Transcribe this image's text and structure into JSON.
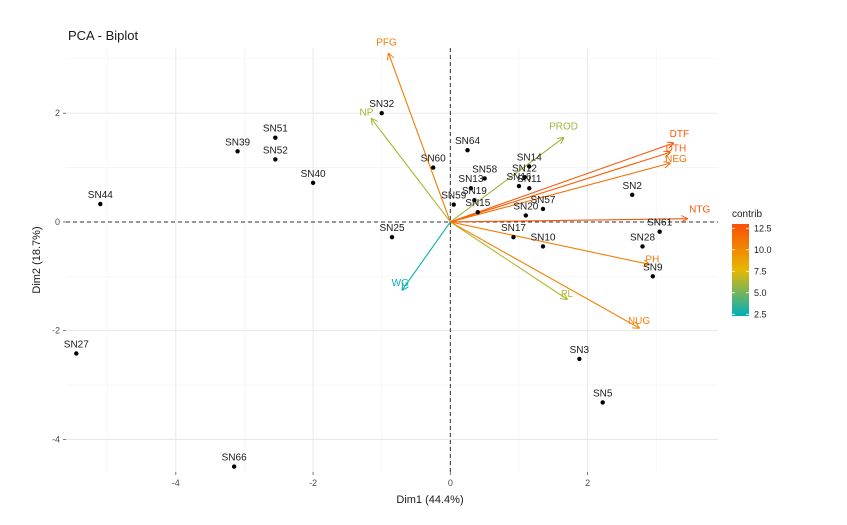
{
  "chart_data": {
    "type": "scatter",
    "subtype": "pca-biplot",
    "title": "PCA - Biplot",
    "xlabel": "Dim1 (44.4%)",
    "ylabel": "Dim2 (18.7%)",
    "xlim": [
      -5.6,
      3.9
    ],
    "ylim": [
      -4.6,
      3.2
    ],
    "x_ticks": [
      -4,
      -2,
      0,
      2
    ],
    "y_ticks": [
      -4,
      -2,
      0,
      2
    ],
    "grid": true,
    "individuals": [
      {
        "name": "SN32",
        "x": -1.0,
        "y": 2.0
      },
      {
        "name": "SN51",
        "x": -2.55,
        "y": 1.55
      },
      {
        "name": "SN39",
        "x": -3.1,
        "y": 1.3
      },
      {
        "name": "SN52",
        "x": -2.55,
        "y": 1.15
      },
      {
        "name": "SN40",
        "x": -2.0,
        "y": 0.72
      },
      {
        "name": "SN44",
        "x": -5.1,
        "y": 0.33
      },
      {
        "name": "SN60",
        "x": -0.25,
        "y": 1.0
      },
      {
        "name": "SN64",
        "x": 0.25,
        "y": 1.32
      },
      {
        "name": "SN58",
        "x": 0.5,
        "y": 0.8
      },
      {
        "name": "SN13",
        "x": 0.3,
        "y": 0.62
      },
      {
        "name": "SN19",
        "x": 0.35,
        "y": 0.4
      },
      {
        "name": "SN59",
        "x": 0.05,
        "y": 0.32
      },
      {
        "name": "SN15",
        "x": 0.4,
        "y": 0.18
      },
      {
        "name": "SN14",
        "x": 1.15,
        "y": 1.02
      },
      {
        "name": "SN12",
        "x": 1.08,
        "y": 0.82
      },
      {
        "name": "SN16",
        "x": 1.0,
        "y": 0.66
      },
      {
        "name": "SN11",
        "x": 1.15,
        "y": 0.62
      },
      {
        "name": "SN57",
        "x": 1.35,
        "y": 0.24
      },
      {
        "name": "SN20",
        "x": 1.1,
        "y": 0.12
      },
      {
        "name": "SN17",
        "x": 0.92,
        "y": -0.28
      },
      {
        "name": "SN10",
        "x": 1.35,
        "y": -0.45
      },
      {
        "name": "SN25",
        "x": -0.85,
        "y": -0.28
      },
      {
        "name": "SN2",
        "x": 2.65,
        "y": 0.5
      },
      {
        "name": "SN61",
        "x": 3.05,
        "y": -0.18
      },
      {
        "name": "SN28",
        "x": 2.8,
        "y": -0.45
      },
      {
        "name": "SN9",
        "x": 2.95,
        "y": -1.0
      },
      {
        "name": "SN3",
        "x": 1.88,
        "y": -2.52
      },
      {
        "name": "SN5",
        "x": 2.22,
        "y": -3.32
      },
      {
        "name": "SN27",
        "x": -5.45,
        "y": -2.42
      },
      {
        "name": "SN66",
        "x": -3.15,
        "y": -4.5
      }
    ],
    "variables": [
      {
        "name": "PFG",
        "x": -0.9,
        "y": 3.1,
        "contrib": 10.8
      },
      {
        "name": "NP",
        "x": -1.15,
        "y": 1.9,
        "contrib": 6.2
      },
      {
        "name": "PROD",
        "x": 1.65,
        "y": 1.55,
        "contrib": 6.0
      },
      {
        "name": "DTF",
        "x": 3.25,
        "y": 1.45,
        "contrib": 12.5
      },
      {
        "name": "DTH",
        "x": 3.2,
        "y": 1.28,
        "contrib": 12.2
      },
      {
        "name": "NEG",
        "x": 3.2,
        "y": 1.08,
        "contrib": 11.3
      },
      {
        "name": "NTG",
        "x": 3.45,
        "y": 0.06,
        "contrib": 12.6
      },
      {
        "name": "PH",
        "x": 2.9,
        "y": -0.78,
        "contrib": 10.6
      },
      {
        "name": "PL",
        "x": 1.7,
        "y": -1.42,
        "contrib": 6.4
      },
      {
        "name": "NUG",
        "x": 2.75,
        "y": -1.95,
        "contrib": 10.4
      },
      {
        "name": "WG",
        "x": -0.7,
        "y": -1.25,
        "contrib": 2.5
      }
    ],
    "legend": {
      "title": "contrib",
      "position": "right",
      "labels": [
        "12.5",
        "10.0",
        "7.5",
        "5.0",
        "2.5"
      ],
      "values": [
        12.5,
        10.0,
        7.5,
        5.0,
        2.5
      ],
      "range": [
        2.3,
        13.0
      ],
      "colors": [
        "#00AFBB",
        "#E7B800",
        "#FC4E07"
      ]
    }
  }
}
